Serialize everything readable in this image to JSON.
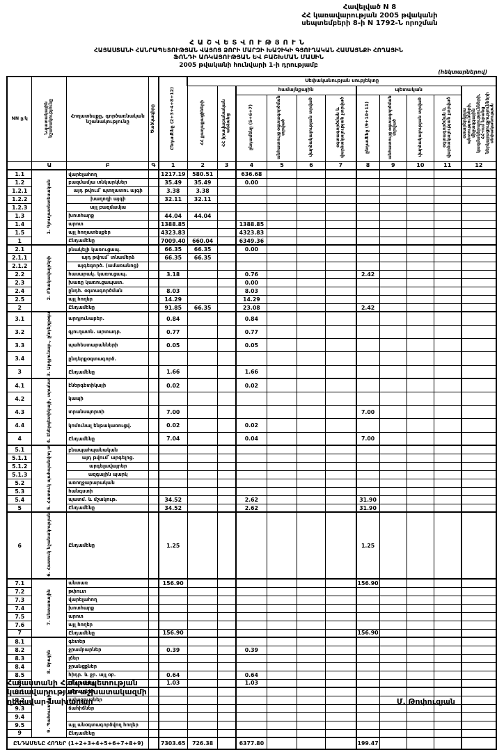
{
  "appendix": {
    "line1": "Հավելված N 8",
    "line2": "ՀՀ կառավարության 2005 թվականի",
    "line3": "սեպտեմբերի 8-ի  N 1792-Ն որոշման"
  },
  "title": {
    "line1": "ՀԱՇՎԵՏՎՈՒԹՅՈՒՆ",
    "line2": "ՀԱՅԱՍՏԱՆԻ ՀԱՆՐԱՊԵՏՈՒԹՅԱՆ ՎԱՅՈՑ ՁՈՐԻ ՄԱՐԶԻ ԽԱՉԻԿԻ ԳՅՈՒՂԱԿԱՆ ՀԱՄԱՅՆՔԻ ՀՈՂԱՅԻՆ",
    "line3": "ՖՈՆԴԻ ԱՌԿԱՅՈՒԹՅԱՆ ԵՎ ԲԱՇԽՄԱՆ ՄԱՍԻՆ",
    "line4": "2005 թվականի հունվարի 1-ի դրությամբ",
    "unit_note": "(հեկտարներով)"
  },
  "table": {
    "header": {
      "nn": "NN ը/կ",
      "purpose": "Նպատակային նշանակությունը",
      "landtype": "Հողատեսքը, գործառնական նշանակությունը",
      "code": "Ծածկագիրը",
      "c1": "Ընդամենը (2+3+4+8+12)",
      "subjects": "Սեփականության սուբյեկտը",
      "c2": "ՀՀ քաղաքացիների",
      "c3": "ՀՀ իրավաբանական անձանց",
      "community": "համայնքային",
      "state": "պետական",
      "c4": "ընդամենը (5+6+7)",
      "c5": "անհատույց օգտագործման տրված",
      "c6": "վարձակալության տրված",
      "c7": "օգտագործման և վարձակալության չտրված",
      "c8": "ընդամենը (9+10+11)",
      "c9": "անհատույց օգտագործման տրված",
      "c10": "վարձակալության տրված",
      "c11": "օգտագործման և վարձակալության չտրված",
      "c12": "օտարերկրյա պետությունների, միջազգային կազմակերպությունների, ՀՀ-ում նրանց ներկայացուցչությունների սեփականության",
      "letters": [
        "",
        "Ա",
        "Բ",
        "Գ",
        "1",
        "2",
        "3",
        "4",
        "5",
        "6",
        "7",
        "8",
        "9",
        "10",
        "11",
        "12"
      ]
    },
    "sections": [
      {
        "label": "1. Գյուղատնտեսական",
        "rows": [
          {
            "code": "1.1",
            "name": "վարելահող",
            "c1": "1217.19",
            "c2": "580.51",
            "c4": "636.68"
          },
          {
            "code": "1.2",
            "name": "բազմամյա տնկարկներ",
            "c1": "35.49",
            "c2": "35.49",
            "c4": "0.00"
          },
          {
            "code": "1.2.1",
            "name": "այդ թվում՝ պտղատու այգի",
            "sub": true,
            "c1": "3.38",
            "c2": "3.38"
          },
          {
            "code": "1.2.2",
            "name": "խաղողի այգի",
            "sub": true,
            "c1": "32.11",
            "c2": "32.11"
          },
          {
            "code": "1.2.3",
            "name": "այլ բազմամյա",
            "sub": true
          },
          {
            "code": "1.3",
            "name": "խոտհարք",
            "c1": "44.04",
            "c2": "44.04"
          },
          {
            "code": "1.4",
            "name": "արոտ",
            "c1": "1388.85",
            "c4": "1388.85"
          },
          {
            "code": "1.5",
            "name": "այլ հողատեսքեր",
            "c1": "4323.83",
            "c4": "4323.83"
          },
          {
            "code": "1",
            "name": "Ընդամենը",
            "c1": "7009.40",
            "c2": "660.04",
            "c4": "6349.36"
          }
        ]
      },
      {
        "label": "2. Բնակավայրերի",
        "rows": [
          {
            "code": "2.1",
            "name": "բնակելի կառուցապ.",
            "c1": "66.35",
            "c2": "66.35",
            "c4": "0.00"
          },
          {
            "code": "2.1.1",
            "name": "այդ թվում՝ տնամերձ",
            "sub": true,
            "c1": "66.35",
            "c2": "66.35"
          },
          {
            "code": "2.1.2",
            "name": "այգեգործ. (ամառանոց)",
            "sub": true
          },
          {
            "code": "2.2",
            "name": "հասարակ. կառուցապ.",
            "c1": "3.18",
            "c4": "0.76",
            "c8": "2.42"
          },
          {
            "code": "2.3",
            "name": "խառը կառուցապատ.",
            "c4": "0.00"
          },
          {
            "code": "2.4",
            "name": "ընդհ. օգտագործման",
            "c1": "8.03",
            "c4": "8.03"
          },
          {
            "code": "2.5",
            "name": "այլ հողեր",
            "c1": "14.29",
            "c4": "14.29"
          },
          {
            "code": "2",
            "name": "Ընդամենը",
            "c1": "91.85",
            "c2": "66.35",
            "c4": "23.08",
            "c8": "2.42"
          }
        ]
      },
      {
        "label": "3. Արդյունաբ., ընդերքօգտ. և այլ արտադր. նշանակության օբյեկտների",
        "rows": [
          {
            "code": "3.1",
            "name": "արդյունաբեր.",
            "c1": "0.84",
            "c4": "0.84"
          },
          {
            "code": "3.2",
            "name": "գյուղատն. արտադր.",
            "c1": "0.77",
            "c4": "0.77"
          },
          {
            "code": "3.3",
            "name": "պահեստարանների",
            "c1": "0.05",
            "c4": "0.05"
          },
          {
            "code": "3.4",
            "name": "ընդերքօգտագործ."
          },
          {
            "code": "3",
            "name": "Ընդամենը",
            "c1": "1.66",
            "c4": "1.66"
          }
        ]
      },
      {
        "label": "4. Էներգետիկայի, տրանսպորտի, կապի, կոմունալ ենթակառուցվ. օբյեկտների",
        "rows": [
          {
            "code": "4.1",
            "name": "էներգետիկայի",
            "c1": "0.02",
            "c4": "0.02"
          },
          {
            "code": "4.2",
            "name": "կապի"
          },
          {
            "code": "4.3",
            "name": "տրանսպորտի",
            "c1": "7.00",
            "c8": "7.00"
          },
          {
            "code": "4.4",
            "name": "կոմունալ ենթակառուցվ.",
            "c1": "0.02",
            "c4": "0.02"
          },
          {
            "code": "4",
            "name": "Ընդամենը",
            "c1": "7.04",
            "c4": "0.04",
            "c8": "7.00"
          }
        ]
      },
      {
        "label": "5. Հատուկ պահպանվող տարածքների",
        "rows": [
          {
            "code": "5.1",
            "name": "բնապահպանական"
          },
          {
            "code": "5.1.1",
            "name": "այդ թվում՝ արգելոց.",
            "sub": true
          },
          {
            "code": "5.1.2",
            "name": "արգելավայրեր",
            "sub": true
          },
          {
            "code": "5.1.3",
            "name": "ազգային պարկ",
            "sub": true
          },
          {
            "code": "5.2",
            "name": "առողջարարական"
          },
          {
            "code": "5.3",
            "name": "հանգստի"
          },
          {
            "code": "5.4",
            "name": "պատմ. և մշակութ.",
            "c1": "34.52",
            "c4": "2.62",
            "c8": "31.90"
          },
          {
            "code": "5",
            "name": "Ընդամենը",
            "c1": "34.52",
            "c4": "2.62",
            "c8": "31.90"
          }
        ]
      },
      {
        "label": "6. Հատուկ նշանակության",
        "tall": true,
        "rows": [
          {
            "code": "6",
            "name": "Ընդամենը",
            "c1": "1.25",
            "c8": "1.25"
          }
        ]
      },
      {
        "label": "7. Անտառային",
        "rows": [
          {
            "code": "7.1",
            "name": "անտառ",
            "c1": "156.90",
            "c8": "156.90"
          },
          {
            "code": "7.2",
            "name": "թփուտ"
          },
          {
            "code": "7.3",
            "name": "վարելահող"
          },
          {
            "code": "7.4",
            "name": "խոտհարք"
          },
          {
            "code": "7.5",
            "name": "արոտ"
          },
          {
            "code": "7.6",
            "name": "այլ հողեր"
          },
          {
            "code": "7",
            "name": "Ընդամենը",
            "c1": "156.90",
            "c8": "156.90"
          }
        ]
      },
      {
        "label": "8. Ջրային",
        "rows": [
          {
            "code": "8.1",
            "name": "գետեր"
          },
          {
            "code": "8.2",
            "name": "ջրամբարներ",
            "c1": "0.39",
            "c4": "0.39"
          },
          {
            "code": "8.3",
            "name": "լճեր"
          },
          {
            "code": "8.4",
            "name": "ջրանցքներ"
          },
          {
            "code": "8.5",
            "name": "հիդր. և ջր. այլ օբ.",
            "c1": "0.64",
            "c4": "0.64"
          },
          {
            "code": "8",
            "name": "Ընդամենը",
            "c1": "1.03",
            "c4": "1.03"
          }
        ]
      },
      {
        "label": "9. Պահուստային",
        "rows": [
          {
            "code": "9.1",
            "name": "աղուտներ"
          },
          {
            "code": "9.2",
            "name": "ավազուտներ"
          },
          {
            "code": "9.3",
            "name": "ճահիճներ"
          },
          {
            "code": "9.4",
            "name": ""
          },
          {
            "code": "9.5",
            "name": "այլ անօգտագործվող հողեր"
          },
          {
            "code": "9",
            "name": "Ընդամենը"
          }
        ]
      }
    ],
    "total": {
      "label": "ԸՆԴԱՄԵՆԸ ՀՈՂԵՐ (1+2+3+4+5+6+7+8+9)",
      "c1": "7303.65",
      "c2": "726.38",
      "c4": "6377.80",
      "c8": "199.47"
    }
  },
  "footer": {
    "line1": "Հայաստանի Հանրապետության",
    "line2": "կառավարության աշխատակազմի",
    "line3": "ղեկավար-նախարար",
    "signature": "Մ. Թոփուզյան"
  }
}
